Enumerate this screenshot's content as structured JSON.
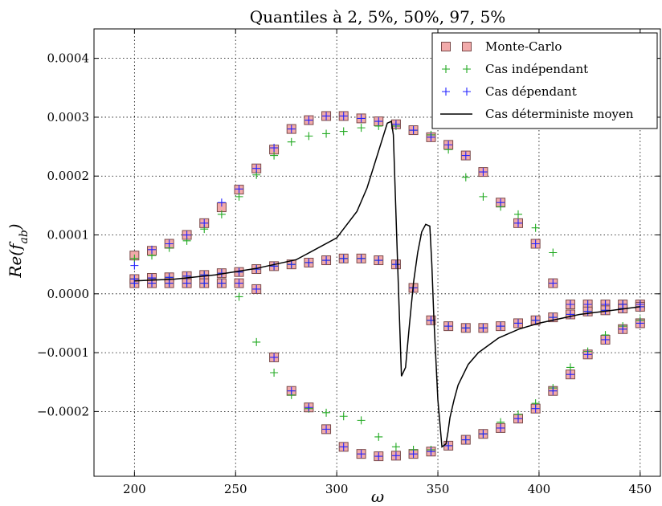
{
  "chart_data": {
    "type": "scatter",
    "title": "Quantiles à 2, 5%, 50%, 97, 5%",
    "xlabel": "ω",
    "ylabel": "Re(f_ab)",
    "xlim": [
      180,
      460
    ],
    "ylim": [
      -0.00031,
      0.00045
    ],
    "xticks": [
      200,
      250,
      300,
      350,
      400,
      450
    ],
    "xtick_labels": [
      "200",
      "250",
      "300",
      "350",
      "400",
      "450"
    ],
    "yticks": [
      -0.0002,
      -0.0001,
      0.0,
      0.0001,
      0.0002,
      0.0003,
      0.0004
    ],
    "ytick_labels": [
      "−0.0002",
      "−0.0001",
      "0.0000",
      "0.0001",
      "0.0002",
      "0.0003",
      "0.0004"
    ],
    "grid": true,
    "legend_position": "top-right",
    "colors": {
      "monte_carlo_fill": "#f2aaaa",
      "monte_carlo_edge": "#7a4a4a",
      "independant": "#22aa22",
      "dependant": "#2222ff",
      "deterministe": "#000000"
    },
    "series": [
      {
        "name": "Monte-Carlo",
        "marker": "square",
        "x": [
          200,
          208.6,
          217.2,
          225.9,
          234.5,
          243.1,
          251.7,
          260.3,
          269,
          277.6,
          286.2,
          294.8,
          303.4,
          312.1,
          320.7,
          329.3,
          337.9,
          346.6,
          355.2,
          363.8,
          372.4,
          381,
          389.7,
          398.3,
          406.9,
          415.5,
          424.1,
          432.8,
          441.4,
          450,
          200,
          208.6,
          217.2,
          225.9,
          234.5,
          243.1,
          251.7,
          260.3,
          269,
          277.6,
          286.2,
          294.8,
          303.4,
          312.1,
          320.7,
          329.3,
          337.9,
          346.6,
          355.2,
          363.8,
          372.4,
          381,
          389.7,
          398.3,
          406.9,
          415.5,
          424.1,
          432.8,
          441.4,
          450,
          200,
          208.6,
          217.2,
          225.9,
          234.5,
          243.1,
          251.7,
          260.3,
          269,
          277.6,
          286.2,
          294.8,
          303.4,
          312.1,
          320.7,
          329.3,
          337.9,
          346.6,
          355.2,
          363.8,
          372.4,
          381,
          389.7,
          398.3,
          406.9,
          415.5,
          424.1,
          432.8,
          441.4,
          450
        ],
        "y": [
          6.5e-05,
          7.3e-05,
          8.5e-05,
          0.0001,
          0.00012,
          0.000147,
          0.000177,
          0.000213,
          0.000245,
          0.00028,
          0.000295,
          0.000302,
          0.000302,
          0.000298,
          0.000293,
          0.000288,
          0.000278,
          0.000266,
          0.000253,
          0.000235,
          0.000207,
          0.000155,
          0.00012,
          8.5e-05,
          1.8e-05,
          -1.8e-05,
          -1.8e-05,
          -1.8e-05,
          -1.8e-05,
          -1.8e-05,
          2.5e-05,
          2.7e-05,
          2.8e-05,
          3e-05,
          3.2e-05,
          3.5e-05,
          3.7e-05,
          4.2e-05,
          4.7e-05,
          5e-05,
          5.3e-05,
          5.7e-05,
          6e-05,
          6e-05,
          5.7e-05,
          5e-05,
          1e-05,
          -4.5e-05,
          -5.5e-05,
          -5.8e-05,
          -5.8e-05,
          -5.5e-05,
          -5e-05,
          -4.5e-05,
          -4e-05,
          -3.5e-05,
          -3e-05,
          -2.8e-05,
          -2.5e-05,
          -2.2e-05,
          1.8e-05,
          1.8e-05,
          1.8e-05,
          1.8e-05,
          1.8e-05,
          1.8e-05,
          1.8e-05,
          8e-06,
          -0.000108,
          -0.000165,
          -0.000193,
          -0.00023,
          -0.00026,
          -0.000272,
          -0.000276,
          -0.000275,
          -0.000272,
          -0.000268,
          -0.000258,
          -0.000248,
          -0.000238,
          -0.000228,
          -0.000212,
          -0.000195,
          -0.000165,
          -0.000137,
          -0.000103,
          -7.8e-05,
          -6e-05,
          -5e-05
        ]
      },
      {
        "name": "Cas indépendant",
        "marker": "plus",
        "x": [
          200,
          208.6,
          217.2,
          225.9,
          234.5,
          243.1,
          251.7,
          260.3,
          269,
          277.6,
          286.2,
          294.8,
          303.4,
          312.1,
          320.7,
          329.3,
          337.9,
          346.6,
          355.2,
          363.8,
          372.4,
          381,
          389.7,
          398.3,
          406.9,
          415.5,
          424.1,
          432.8,
          441.4,
          450,
          200,
          208.6,
          217.2,
          225.9,
          234.5,
          243.1,
          251.7,
          260.3,
          269,
          277.6,
          286.2,
          294.8,
          303.4,
          312.1,
          320.7,
          329.3,
          337.9,
          346.6,
          355.2,
          363.8,
          372.4,
          381,
          389.7,
          398.3,
          406.9,
          415.5,
          424.1,
          432.8,
          441.4,
          450,
          200,
          208.6,
          217.2,
          225.9,
          234.5,
          243.1,
          251.7,
          260.3,
          269,
          277.6,
          286.2,
          294.8,
          303.4,
          312.1,
          320.7,
          329.3,
          337.9,
          346.6,
          355.2,
          363.8,
          372.4,
          381,
          389.7,
          398.3,
          406.9,
          415.5,
          424.1,
          432.8,
          441.4,
          450
        ],
        "y": [
          6e-05,
          6.5e-05,
          7.8e-05,
          9e-05,
          0.00011,
          0.000135,
          0.000165,
          0.000202,
          0.000235,
          0.000258,
          0.000268,
          0.000272,
          0.000276,
          0.000282,
          0.000285,
          0.000285,
          0.000278,
          0.00027,
          0.000245,
          0.000198,
          0.000165,
          0.000148,
          0.000135,
          0.000112,
          7e-05,
          -1.8e-05,
          -1.8e-05,
          -1.8e-05,
          -1.8e-05,
          -1.8e-05,
          2.5e-05,
          2.7e-05,
          2.8e-05,
          3e-05,
          3.2e-05,
          3.5e-05,
          3.7e-05,
          4.2e-05,
          4.7e-05,
          5e-05,
          5.3e-05,
          5.7e-05,
          6e-05,
          6e-05,
          5.7e-05,
          5e-05,
          1e-05,
          -4.5e-05,
          -5.5e-05,
          -5.8e-05,
          -5.8e-05,
          -5.5e-05,
          -5e-05,
          -4.5e-05,
          -4e-05,
          -3.5e-05,
          -3e-05,
          -2.8e-05,
          -2.5e-05,
          -2.2e-05,
          1.8e-05,
          1.8e-05,
          1.8e-05,
          1.8e-05,
          1.8e-05,
          1.8e-05,
          -5e-06,
          -8.2e-05,
          -0.000134,
          -0.000172,
          -0.000195,
          -0.000202,
          -0.000208,
          -0.000215,
          -0.000243,
          -0.00026,
          -0.000265,
          -0.000265,
          -0.000258,
          -0.000248,
          -0.000238,
          -0.000218,
          -0.000205,
          -0.000186,
          -0.00016,
          -0.000125,
          -9.8e-05,
          -7e-05,
          -5.5e-05,
          -4.5e-05
        ]
      },
      {
        "name": "Cas dépendant",
        "marker": "plus",
        "x": [
          200,
          208.6,
          217.2,
          225.9,
          234.5,
          243.1,
          251.7,
          260.3,
          269,
          277.6,
          286.2,
          294.8,
          303.4,
          312.1,
          320.7,
          329.3,
          337.9,
          346.6,
          355.2,
          363.8,
          372.4,
          381,
          389.7,
          398.3,
          406.9,
          415.5,
          424.1,
          432.8,
          441.4,
          450,
          200,
          208.6,
          217.2,
          225.9,
          234.5,
          243.1,
          251.7,
          260.3,
          269,
          277.6,
          286.2,
          294.8,
          303.4,
          312.1,
          320.7,
          329.3,
          337.9,
          346.6,
          355.2,
          363.8,
          372.4,
          381,
          389.7,
          398.3,
          406.9,
          415.5,
          424.1,
          432.8,
          441.4,
          450,
          200,
          208.6,
          217.2,
          225.9,
          234.5,
          243.1,
          251.7,
          260.3,
          269,
          277.6,
          286.2,
          294.8,
          303.4,
          312.1,
          320.7,
          329.3,
          337.9,
          346.6,
          355.2,
          363.8,
          372.4,
          381,
          389.7,
          398.3,
          406.9,
          415.5,
          424.1,
          432.8,
          441.4,
          450
        ],
        "y": [
          4.8e-05,
          7.5e-05,
          8.5e-05,
          0.0001,
          0.00012,
          0.000155,
          0.000178,
          0.000213,
          0.000248,
          0.00028,
          0.000295,
          0.000302,
          0.000302,
          0.000298,
          0.000293,
          0.000288,
          0.000278,
          0.000266,
          0.000253,
          0.000235,
          0.000207,
          0.000155,
          0.00012,
          8.5e-05,
          1.8e-05,
          -1.8e-05,
          -1.8e-05,
          -1.8e-05,
          -1.8e-05,
          -1.8e-05,
          2.5e-05,
          2.7e-05,
          2.8e-05,
          3e-05,
          3.2e-05,
          3.5e-05,
          3.7e-05,
          4.2e-05,
          4.7e-05,
          5e-05,
          5.3e-05,
          5.7e-05,
          6e-05,
          6e-05,
          5.7e-05,
          5e-05,
          1e-05,
          -4.5e-05,
          -5.5e-05,
          -5.8e-05,
          -5.8e-05,
          -5.5e-05,
          -5e-05,
          -4.5e-05,
          -4e-05,
          -3.5e-05,
          -3e-05,
          -2.8e-05,
          -2.5e-05,
          -2.2e-05,
          1.8e-05,
          1.8e-05,
          1.8e-05,
          1.8e-05,
          1.8e-05,
          1.8e-05,
          1.8e-05,
          8e-06,
          -0.000108,
          -0.000165,
          -0.000193,
          -0.00023,
          -0.00026,
          -0.000272,
          -0.000276,
          -0.000275,
          -0.000272,
          -0.000268,
          -0.000258,
          -0.000248,
          -0.000238,
          -0.000228,
          -0.000212,
          -0.000195,
          -0.000165,
          -0.000137,
          -0.000103,
          -7.8e-05,
          -6e-05,
          -5e-05
        ]
      },
      {
        "name": "Cas déterministe moyen",
        "type": "line",
        "x": [
          200,
          220,
          240,
          260,
          280,
          300,
          310,
          315,
          320,
          325,
          327,
          328,
          330,
          332,
          334,
          336,
          338,
          340,
          342,
          344,
          346,
          347,
          348,
          350,
          352,
          354,
          355,
          356,
          358,
          360,
          365,
          370,
          380,
          390,
          400,
          420,
          450
        ],
        "y": [
          2.2e-05,
          2.5e-05,
          3.2e-05,
          4.3e-05,
          5.8e-05,
          9.5e-05,
          0.00014,
          0.00018,
          0.000235,
          0.00029,
          0.000293,
          0.00027,
          6e-05,
          -0.00014,
          -0.000125,
          -5e-05,
          2e-05,
          7e-05,
          0.000105,
          0.000118,
          0.000115,
          5e-05,
          -4e-05,
          -0.00018,
          -0.00026,
          -0.000255,
          -0.000235,
          -0.00021,
          -0.00018,
          -0.000155,
          -0.00012,
          -0.0001,
          -7.5e-05,
          -6e-05,
          -5e-05,
          -3.5e-05,
          -2.2e-05
        ]
      }
    ]
  }
}
